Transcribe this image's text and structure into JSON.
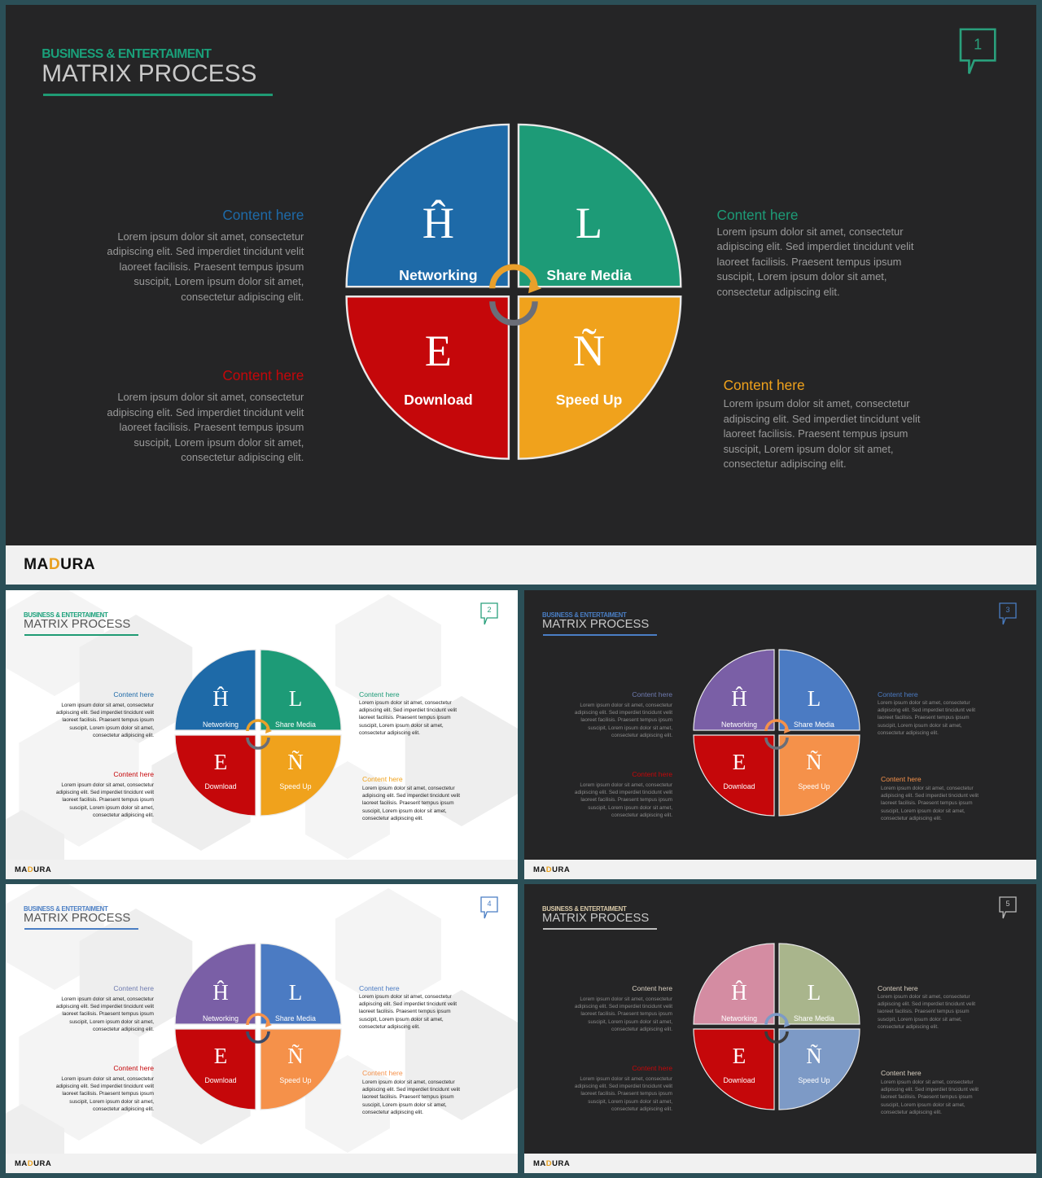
{
  "slides": [
    {
      "number": "1",
      "theme": "dark",
      "kicker": "BUSINESS & ENTERTAIMENT",
      "title": "MATRIX PROCESS",
      "brand": {
        "pre": "MA",
        "accent": "D",
        "post": "URA"
      },
      "colors": {
        "bg": "#252526",
        "kicker": "#1aa07a",
        "title": "#c9c9c9",
        "rule": "#1f9b74",
        "bubble": "#2aa07c",
        "body": "#9a9a9a",
        "q_tl": "#1e6aa8",
        "q_tr": "#1d9b77",
        "q_bl": "#c5070a",
        "q_br": "#f0a21c",
        "arc_top": "#e9a02b",
        "arc_bottom": "#6b6e78",
        "h_tl": "#1e6aa8",
        "h_tr": "#1d9b77",
        "h_bl": "#c5070a",
        "h_br": "#f0a21c"
      },
      "quadrants": [
        {
          "letter": "Ĥ",
          "label": "Networking"
        },
        {
          "letter": "L",
          "label": "Share Media"
        },
        {
          "letter": "E",
          "label": "Download"
        },
        {
          "letter": "Ñ",
          "label": "Speed Up"
        }
      ],
      "content": [
        {
          "heading": "Content here",
          "body": "Lorem ipsum dolor sit amet, consectetur adipiscing elit. Sed imperdiet tincidunt velit laoreet facilisis. Praesent tempus ipsum suscipit, Lorem ipsum dolor sit amet, consectetur adipiscing elit."
        },
        {
          "heading": "Content here",
          "body": "Lorem ipsum dolor sit amet, consectetur adipiscing elit. Sed imperdiet tincidunt velit laoreet facilisis. Praesent tempus ipsum suscipit, Lorem ipsum dolor sit amet, consectetur adipiscing elit."
        },
        {
          "heading": "Content here",
          "body": "Lorem ipsum dolor sit amet, consectetur adipiscing elit. Sed imperdiet tincidunt velit laoreet facilisis. Praesent tempus ipsum suscipit, Lorem ipsum dolor sit amet, consectetur adipiscing elit."
        },
        {
          "heading": "Content here",
          "body": "Lorem ipsum dolor sit amet, consectetur adipiscing elit. Sed imperdiet tincidunt velit laoreet facilisis. Praesent tempus ipsum suscipit, Lorem ipsum dolor sit amet, consectetur adipiscing elit."
        }
      ]
    },
    {
      "number": "2",
      "theme": "light",
      "kicker": "BUSINESS & ENTERTAIMENT",
      "title": "MATRIX PROCESS",
      "brand": {
        "pre": "MA",
        "accent": "D",
        "post": "URA"
      },
      "colors": {
        "bg": "#ffffff",
        "kicker": "#1aa07a",
        "title": "#555555",
        "rule": "#1f9b74",
        "bubble": "#2aa07c",
        "body": "#222222",
        "q_tl": "#1e6aa8",
        "q_tr": "#1d9b77",
        "q_bl": "#c5070a",
        "q_br": "#f0a21c",
        "arc_top": "#e9a02b",
        "arc_bottom": "#6b6e78",
        "h_tl": "#1e6aa8",
        "h_tr": "#1d9b77",
        "h_bl": "#c5070a",
        "h_br": "#f0a21c"
      },
      "quadrants": [
        {
          "letter": "Ĥ",
          "label": "Networking"
        },
        {
          "letter": "L",
          "label": "Share Media"
        },
        {
          "letter": "E",
          "label": "Download"
        },
        {
          "letter": "Ñ",
          "label": "Speed Up"
        }
      ],
      "content": [
        {
          "heading": "Content here",
          "body": "Lorem ipsum dolor sit amet, consectetur adipiscing elit. Sed imperdiet tincidunt velit laoreet facilisis. Praesent tempus ipsum suscipit, Lorem ipsum dolor sit amet, consectetur adipiscing elit."
        },
        {
          "heading": "Content here",
          "body": "Lorem ipsum dolor sit amet, consectetur adipiscing elit. Sed imperdiet tincidunt velit laoreet facilisis. Praesent tempus ipsum suscipit, Lorem ipsum dolor sit amet, consectetur adipiscing elit."
        },
        {
          "heading": "Content here",
          "body": "Lorem ipsum dolor sit amet, consectetur adipiscing elit. Sed imperdiet tincidunt velit laoreet facilisis. Praesent tempus ipsum suscipit, Lorem ipsum dolor sit amet, consectetur adipiscing elit."
        },
        {
          "heading": "Content here",
          "body": "Lorem ipsum dolor sit amet, consectetur adipiscing elit. Sed imperdiet tincidunt velit laoreet facilisis. Praesent tempus ipsum suscipit, Lorem ipsum dolor sit amet, consectetur adipiscing elit."
        }
      ]
    },
    {
      "number": "3",
      "theme": "dark",
      "kicker": "BUSINESS & ENTERTAIMENT",
      "title": "MATRIX PROCESS",
      "brand": {
        "pre": "MA",
        "accent": "D",
        "post": "URA"
      },
      "colors": {
        "bg": "#252526",
        "kicker": "#4a7ec4",
        "title": "#c9c9c9",
        "rule": "#4a7ec4",
        "bubble": "#4a7ec4",
        "body": "#8a8a8a",
        "q_tl": "#7a5fa6",
        "q_tr": "#4b7bc3",
        "q_bl": "#c5070a",
        "q_br": "#f5914a",
        "arc_top": "#f5914a",
        "arc_bottom": "#6b6e78",
        "h_tl": "#6f7bb0",
        "h_tr": "#4b7bc3",
        "h_bl": "#c5070a",
        "h_br": "#f5914a"
      },
      "quadrants": [
        {
          "letter": "Ĥ",
          "label": "Networking"
        },
        {
          "letter": "L",
          "label": "Share Media"
        },
        {
          "letter": "E",
          "label": "Download"
        },
        {
          "letter": "Ñ",
          "label": "Speed Up"
        }
      ],
      "content": [
        {
          "heading": "Content here",
          "body": "Lorem ipsum dolor sit amet, consectetur adipiscing elit. Sed imperdiet tincidunt velit laoreet facilisis. Praesent tempus ipsum suscipit, Lorem ipsum dolor sit amet, consectetur adipiscing elit."
        },
        {
          "heading": "Content here",
          "body": "Lorem ipsum dolor sit amet, consectetur adipiscing elit. Sed imperdiet tincidunt velit laoreet facilisis. Praesent tempus ipsum suscipit, Lorem ipsum dolor sit amet, consectetur adipiscing elit."
        },
        {
          "heading": "Content here",
          "body": "Lorem ipsum dolor sit amet, consectetur adipiscing elit. Sed imperdiet tincidunt velit laoreet facilisis. Praesent tempus ipsum suscipit, Lorem ipsum dolor sit amet, consectetur adipiscing elit."
        },
        {
          "heading": "Content here",
          "body": "Lorem ipsum dolor sit amet, consectetur adipiscing elit. Sed imperdiet tincidunt velit laoreet facilisis. Praesent tempus ipsum suscipit, Lorem ipsum dolor sit amet, consectetur adipiscing elit."
        }
      ]
    },
    {
      "number": "4",
      "theme": "light",
      "kicker": "BUSINESS & ENTERTAIMENT",
      "title": "MATRIX PROCESS",
      "brand": {
        "pre": "MA",
        "accent": "D",
        "post": "URA"
      },
      "colors": {
        "bg": "#ffffff",
        "kicker": "#4a7ec4",
        "title": "#555555",
        "rule": "#4a7ec4",
        "bubble": "#4a7ec4",
        "body": "#222222",
        "q_tl": "#7a5fa6",
        "q_tr": "#4b7bc3",
        "q_bl": "#c5070a",
        "q_br": "#f5914a",
        "arc_top": "#f5914a",
        "arc_bottom": "#3c4a66",
        "h_tl": "#6f7bb0",
        "h_tr": "#4b7bc3",
        "h_bl": "#c5070a",
        "h_br": "#f5914a"
      },
      "quadrants": [
        {
          "letter": "Ĥ",
          "label": "Networking"
        },
        {
          "letter": "L",
          "label": "Share Media"
        },
        {
          "letter": "E",
          "label": "Download"
        },
        {
          "letter": "Ñ",
          "label": "Speed Up"
        }
      ],
      "content": [
        {
          "heading": "Content here",
          "body": "Lorem ipsum dolor sit amet, consectetur adipiscing elit. Sed imperdiet tincidunt velit laoreet facilisis. Praesent tempus ipsum suscipit, Lorem ipsum dolor sit amet, consectetur adipiscing elit."
        },
        {
          "heading": "Content here",
          "body": "Lorem ipsum dolor sit amet, consectetur adipiscing elit. Sed imperdiet tincidunt velit laoreet facilisis. Praesent tempus ipsum suscipit, Lorem ipsum dolor sit amet, consectetur adipiscing elit."
        },
        {
          "heading": "Content here",
          "body": "Lorem ipsum dolor sit amet, consectetur adipiscing elit. Sed imperdiet tincidunt velit laoreet facilisis. Praesent tempus ipsum suscipit, Lorem ipsum dolor sit amet, consectetur adipiscing elit."
        },
        {
          "heading": "Content here",
          "body": "Lorem ipsum dolor sit amet, consectetur adipiscing elit. Sed imperdiet tincidunt velit laoreet facilisis. Praesent tempus ipsum suscipit, Lorem ipsum dolor sit amet, consectetur adipiscing elit."
        }
      ]
    },
    {
      "number": "5",
      "theme": "dark",
      "kicker": "BUSINESS & ENTERTAIMENT",
      "title": "MATRIX PROCESS",
      "brand": {
        "pre": "MA",
        "accent": "D",
        "post": "URA"
      },
      "colors": {
        "bg": "#252526",
        "kicker": "#d9c9a8",
        "title": "#c9c9c9",
        "rule": "#bdbdbd",
        "bubble": "#bdbdbd",
        "body": "#8a8a8a",
        "q_tl": "#d48ca2",
        "q_tr": "#a9b58c",
        "q_bl": "#c5070a",
        "q_br": "#7d9ac6",
        "arc_top": "#7d9ac6",
        "arc_bottom": "#3a3a3a",
        "h_tl": "#d8cfc0",
        "h_tr": "#d8cfc0",
        "h_bl": "#c5070a",
        "h_br": "#d8cfc0"
      },
      "quadrants": [
        {
          "letter": "Ĥ",
          "label": "Networking"
        },
        {
          "letter": "L",
          "label": "Share Media"
        },
        {
          "letter": "E",
          "label": "Download"
        },
        {
          "letter": "Ñ",
          "label": "Speed Up"
        }
      ],
      "content": [
        {
          "heading": "Content here",
          "body": "Lorem ipsum dolor sit amet, consectetur adipiscing elit. Sed imperdiet tincidunt velit laoreet facilisis. Praesent tempus ipsum suscipit, Lorem ipsum dolor sit amet, consectetur adipiscing elit."
        },
        {
          "heading": "Content here",
          "body": "Lorem ipsum dolor sit amet, consectetur adipiscing elit. Sed imperdiet tincidunt velit laoreet facilisis. Praesent tempus ipsum suscipit, Lorem ipsum dolor sit amet, consectetur adipiscing elit."
        },
        {
          "heading": "Content here",
          "body": "Lorem ipsum dolor sit amet, consectetur adipiscing elit. Sed imperdiet tincidunt velit laoreet facilisis. Praesent tempus ipsum suscipit, Lorem ipsum dolor sit amet, consectetur adipiscing elit."
        },
        {
          "heading": "Content here",
          "body": "Lorem ipsum dolor sit amet, consectetur adipiscing elit. Sed imperdiet tincidunt velit laoreet facilisis. Praesent tempus ipsum suscipit, Lorem ipsum dolor sit amet, consectetur adipiscing elit."
        }
      ]
    }
  ]
}
